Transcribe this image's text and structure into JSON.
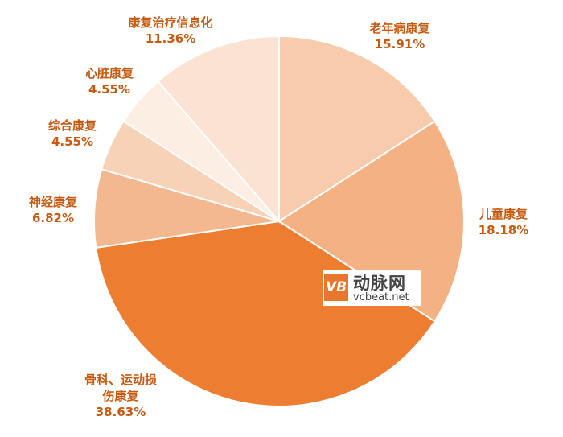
{
  "chart_data": {
    "type": "pie",
    "categories": [
      "老年病康复",
      "儿童康复",
      "骨科、运动损伤康复",
      "神经康复",
      "综合康复",
      "心脏康复",
      "康复治疗信息化"
    ],
    "values": [
      15.91,
      18.18,
      38.63,
      6.82,
      4.55,
      4.55,
      11.36
    ],
    "value_labels": [
      "15.91%",
      "18.18%",
      "38.63%",
      "6.82%",
      "4.55%",
      "4.55%",
      "11.36%"
    ],
    "colors": [
      "#f8cbad",
      "#f4b183",
      "#ed7d31",
      "#f4b890",
      "#f8d2b6",
      "#fdeee4",
      "#fbe3d4"
    ],
    "start_angle": 90,
    "direction": "clockwise",
    "watermark": {
      "logo": "VB",
      "name": "动脉网",
      "url": "vcbeat.net"
    }
  }
}
